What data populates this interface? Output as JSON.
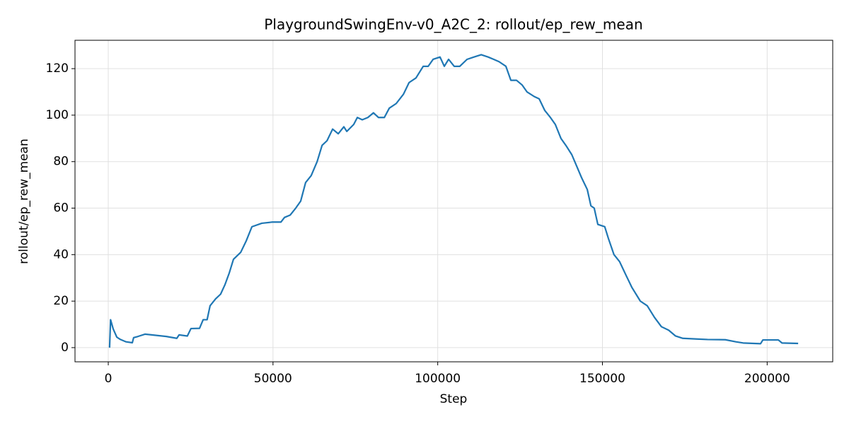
{
  "chart_data": {
    "type": "line",
    "title": "PlaygroundSwingEnv-v0_A2C_2: rollout/ep_rew_mean",
    "x_label": "Step",
    "y_label": "rollout/ep_rew_mean",
    "x": [
      400,
      700,
      1500,
      2600,
      3700,
      5400,
      7300,
      7700,
      9000,
      11200,
      14400,
      17600,
      20800,
      21500,
      24000,
      25100,
      27700,
      28800,
      30000,
      30900,
      32600,
      34100,
      35400,
      36700,
      38000,
      40200,
      41900,
      43600,
      46600,
      49800,
      52400,
      53500,
      55200,
      56900,
      58400,
      59900,
      61600,
      63400,
      64900,
      66400,
      68100,
      69800,
      71500,
      72400,
      74500,
      75600,
      77100,
      78800,
      80500,
      82000,
      83800,
      85300,
      87400,
      89600,
      91300,
      93400,
      95600,
      97100,
      98600,
      100700,
      102000,
      103300,
      105000,
      106700,
      108900,
      111000,
      113200,
      115300,
      117000,
      118600,
      120700,
      122200,
      123900,
      125600,
      127100,
      129300,
      130800,
      132500,
      134200,
      135700,
      137400,
      138900,
      140700,
      142200,
      143700,
      145400,
      146500,
      147500,
      148600,
      150700,
      151800,
      153500,
      155200,
      157200,
      158900,
      161500,
      163600,
      165800,
      167900,
      170100,
      172200,
      174400,
      178700,
      181900,
      187300,
      190500,
      192700,
      198000,
      198700,
      203400,
      204500,
      209400
    ],
    "series": [
      {
        "name": "rollout/ep_rew_mean",
        "color": "#1f77b4",
        "values": [
          0,
          12,
          8,
          4.5,
          3.5,
          2.5,
          2.1,
          4.3,
          4.8,
          5.8,
          5.3,
          4.8,
          4.0,
          5.5,
          5.0,
          8.2,
          8.3,
          12,
          12,
          18,
          21,
          23,
          27,
          32,
          38,
          41,
          46,
          52,
          53.5,
          54,
          54,
          56,
          57,
          60,
          63,
          71,
          74,
          80,
          87,
          89,
          94,
          92,
          95,
          93,
          96,
          99,
          98,
          99,
          101,
          99,
          99,
          103,
          105,
          109,
          114,
          116,
          121,
          121,
          124,
          125,
          121,
          124,
          121,
          121,
          124,
          125,
          126,
          125,
          124,
          123,
          121,
          115,
          115,
          113,
          110,
          108,
          107,
          102,
          99,
          96,
          90,
          87,
          83,
          78,
          73,
          68,
          61,
          60,
          53,
          52,
          47,
          40,
          37,
          31,
          26,
          20,
          18,
          13,
          9,
          7.5,
          5,
          4,
          3.7,
          3.5,
          3.4,
          2.5,
          2,
          1.7,
          3.3,
          3.3,
          2.0,
          1.8
        ]
      }
    ],
    "xlim": [
      -10100,
      219900
    ],
    "ylim": [
      -6.1,
      132.2
    ],
    "xticks": [
      0,
      50000,
      100000,
      150000,
      200000
    ],
    "yticks": [
      0,
      20,
      40,
      60,
      80,
      100,
      120
    ],
    "grid": true
  }
}
